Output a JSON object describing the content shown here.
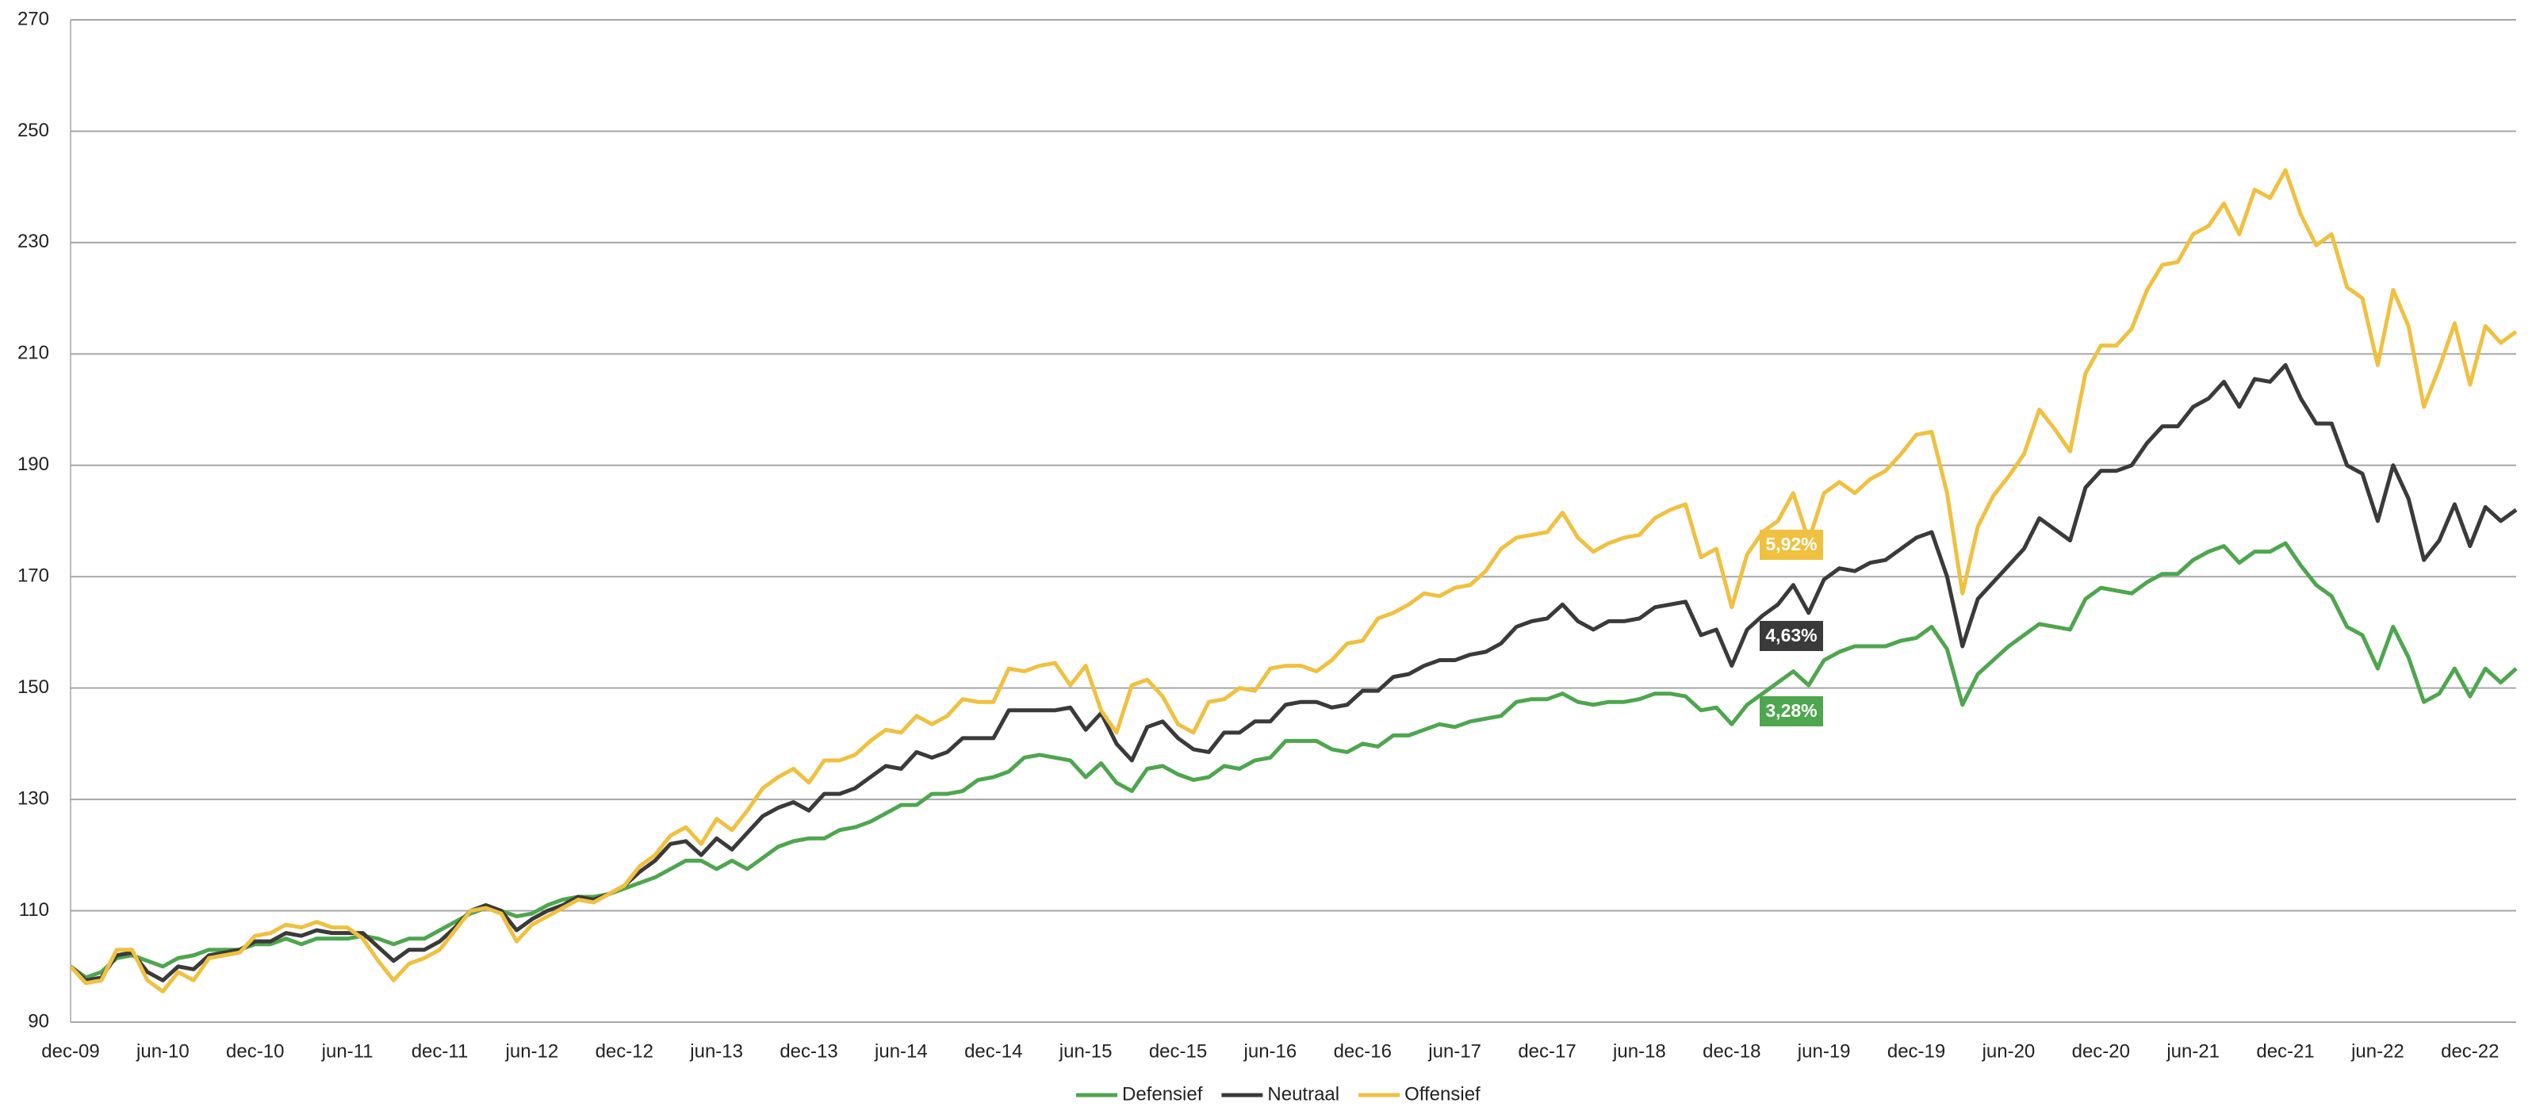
{
  "chart_data": {
    "type": "line",
    "categories": [
      "dec-09",
      null,
      null,
      null,
      null,
      null,
      "jun-10",
      null,
      null,
      null,
      null,
      null,
      "dec-10",
      null,
      null,
      null,
      null,
      null,
      "jun-11",
      null,
      null,
      null,
      null,
      null,
      "dec-11",
      null,
      null,
      null,
      null,
      null,
      "jun-12",
      null,
      null,
      null,
      null,
      null,
      "dec-12",
      null,
      null,
      null,
      null,
      null,
      "jun-13",
      null,
      null,
      null,
      null,
      null,
      "dec-13",
      null,
      null,
      null,
      null,
      null,
      "jun-14",
      null,
      null,
      null,
      null,
      null,
      "dec-14",
      null,
      null,
      null,
      null,
      null,
      "jun-15",
      null,
      null,
      null,
      null,
      null,
      "dec-15",
      null,
      null,
      null,
      null,
      null,
      "jun-16",
      null,
      null,
      null,
      null,
      null,
      "dec-16",
      null,
      null,
      null,
      null,
      null,
      "jun-17",
      null,
      null,
      null,
      null,
      null,
      "dec-17",
      null,
      null,
      null,
      null,
      null,
      "jun-18",
      null,
      null,
      null,
      null,
      null,
      "dec-18",
      null,
      null,
      null,
      null,
      null,
      "jun-19",
      null,
      null,
      null,
      null,
      null,
      "dec-19",
      null,
      null,
      null,
      null,
      null,
      "jun-20",
      null,
      null,
      null,
      null,
      null,
      "dec-20",
      null,
      null,
      null,
      null,
      null,
      "jun-21",
      null,
      null,
      null,
      null,
      null,
      "dec-21",
      null,
      null,
      null,
      null,
      null,
      "jun-22",
      null,
      null,
      null,
      null,
      null,
      "dec-22",
      null,
      null,
      null
    ],
    "series": [
      {
        "name": "Defensief",
        "color": "#4ea64e",
        "values": [
          100,
          98,
          99,
          101.5,
          102,
          101,
          100,
          101.5,
          102,
          103,
          103,
          103,
          104,
          104,
          105,
          104,
          105,
          105,
          105,
          105.5,
          105,
          104,
          105,
          105,
          106.5,
          108,
          109.5,
          110.5,
          110,
          109,
          109.5,
          111,
          112,
          112.5,
          112.5,
          113,
          114,
          115,
          116,
          117.5,
          119,
          119,
          117.5,
          119,
          117.5,
          119.5,
          121.5,
          122.5,
          123,
          123,
          124.5,
          125,
          126,
          127.5,
          129,
          129,
          131,
          131,
          131.5,
          133.5,
          134,
          135,
          137.5,
          138,
          137.5,
          137,
          134,
          136.5,
          133,
          131.5,
          135.5,
          136,
          134.5,
          133.5,
          134,
          136,
          135.5,
          137,
          137.5,
          140.5,
          140.5,
          140.5,
          139,
          138.5,
          140,
          139.5,
          141.5,
          141.5,
          142.5,
          143.5,
          143,
          144,
          144.5,
          145,
          147.5,
          148,
          148,
          149,
          147.5,
          147,
          147.5,
          147.5,
          148,
          149,
          149,
          148.5,
          146,
          146.5,
          143.5,
          147,
          149,
          151,
          153,
          150.5,
          155,
          156.5,
          157.5,
          157.5,
          157.5,
          158.5,
          159,
          161,
          157,
          147,
          152.5,
          155,
          157.5,
          159.5,
          161.5,
          161,
          160.5,
          166,
          168,
          167.5,
          167,
          169,
          170.5,
          170.5,
          173,
          174.5,
          175.5,
          172.5,
          174.5,
          174.5,
          176,
          172,
          168.5,
          166.5,
          161,
          159.5,
          153.5,
          161,
          155.5,
          147.5,
          149,
          153.5,
          148.5,
          153.5,
          151,
          153.5
        ]
      },
      {
        "name": "Neutraal",
        "color": "#3a3a3a",
        "values": [
          100,
          97.5,
          98,
          102,
          102.5,
          99,
          97.5,
          100,
          99.5,
          102,
          102.5,
          103,
          104.5,
          104.5,
          106,
          105.5,
          106.5,
          106,
          106,
          106,
          103.5,
          101,
          103,
          103,
          104.5,
          107,
          110,
          111,
          110,
          106.5,
          108.5,
          110,
          111,
          112.5,
          112,
          113,
          114.5,
          117,
          119,
          122,
          122.5,
          120,
          123,
          121,
          124,
          127,
          128.5,
          129.5,
          128,
          131,
          131,
          132,
          134,
          136,
          135.5,
          138.5,
          137.5,
          138.5,
          141,
          141,
          141,
          146,
          146,
          146,
          146,
          146.5,
          142.5,
          145.5,
          140,
          137,
          143,
          144,
          141,
          139,
          138.5,
          142,
          142,
          144,
          144,
          147,
          147.5,
          147.5,
          146.5,
          147,
          149.5,
          149.5,
          152,
          152.5,
          154,
          155,
          155,
          156,
          156.5,
          158,
          161,
          162,
          162.5,
          165,
          162,
          160.5,
          162,
          162,
          162.5,
          164.5,
          165,
          165.5,
          159.5,
          160.5,
          154,
          160.5,
          163,
          165,
          168.5,
          163.5,
          169.5,
          171.5,
          171,
          172.5,
          173,
          175,
          177,
          178,
          170,
          157.5,
          166,
          169,
          172,
          175,
          180.5,
          178.5,
          176.5,
          186,
          189,
          189,
          190,
          194,
          197,
          197,
          200.5,
          202,
          205,
          200.5,
          205.5,
          205,
          208,
          202,
          197.5,
          197.5,
          190,
          188.5,
          180,
          190,
          184,
          173,
          176.5,
          183,
          175.5,
          182.5,
          180,
          182
        ]
      },
      {
        "name": "Offensief",
        "color": "#f0c040",
        "values": [
          100,
          97,
          97.5,
          103,
          103,
          97.5,
          95.5,
          99,
          97.5,
          101.5,
          102,
          102.5,
          105.5,
          106,
          107.5,
          107,
          108,
          107,
          107,
          105,
          101,
          97.5,
          100.5,
          101.5,
          103,
          106.5,
          110,
          110.5,
          109.5,
          104.5,
          107.5,
          109,
          110.5,
          112,
          111.5,
          113,
          114.5,
          118,
          120,
          123.5,
          125,
          122,
          126.5,
          124.5,
          128,
          132,
          134,
          135.5,
          133,
          137,
          137,
          138,
          140.5,
          142.5,
          142,
          145,
          143.5,
          145,
          148,
          147.5,
          147.5,
          153.5,
          153,
          154,
          154.5,
          150.5,
          154,
          146,
          142,
          150.5,
          151.5,
          148.5,
          143.5,
          142,
          147.5,
          148,
          150,
          149.5,
          153.5,
          154,
          154,
          153,
          155,
          158,
          158.5,
          162.5,
          163.5,
          165,
          167,
          166.5,
          168,
          168.5,
          171,
          175,
          177,
          177.5,
          178,
          181.5,
          177,
          174.5,
          176,
          177,
          177.5,
          180.5,
          182,
          183,
          173.5,
          175,
          164.5,
          174,
          178,
          180,
          185,
          176.5,
          185,
          187,
          185,
          187.5,
          189,
          192,
          195.5,
          196,
          185,
          167,
          179,
          184.5,
          188,
          192,
          200,
          196.5,
          192.5,
          206.5,
          211.5,
          211.5,
          214.5,
          221.5,
          226,
          226.5,
          231.5,
          233,
          237,
          231.5,
          239.5,
          238,
          243,
          235,
          229.5,
          231.5,
          222,
          220,
          208,
          221.5,
          215,
          200.5,
          207.5,
          215.5,
          204.5,
          215,
          212,
          214
        ]
      }
    ],
    "annotations": [
      "5,92%",
      "4,63%",
      "3,28%"
    ],
    "ylim": [
      90,
      270
    ],
    "yticks": [
      90,
      110,
      130,
      150,
      170,
      190,
      210,
      230,
      250,
      270
    ],
    "grid": true,
    "legend": "bottom"
  }
}
